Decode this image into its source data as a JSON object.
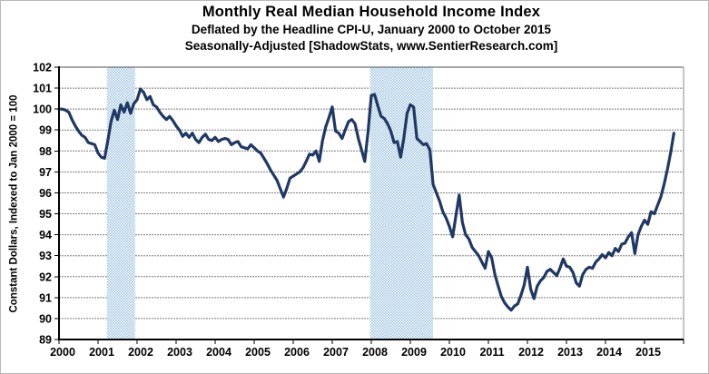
{
  "chart_data": {
    "type": "line",
    "title": "Monthly Real Median Household Income Index",
    "subtitle1": "Deflated by the Headline CPI-U, January 2000 to October 2015",
    "subtitle2": "Seasonally-Adjusted [ShadowStats, www.SentierResearch.com]",
    "ylabel": "Constant Dollars, Indexed to Jan 2000 = 100",
    "ylim": [
      89,
      102
    ],
    "yticks": [
      89,
      90,
      91,
      92,
      93,
      94,
      95,
      96,
      97,
      98,
      99,
      100,
      101,
      102
    ],
    "x_domain_years": [
      2000,
      2016
    ],
    "xticks": [
      2000,
      2001,
      2002,
      2003,
      2004,
      2005,
      2006,
      2007,
      2008,
      2009,
      2010,
      2011,
      2012,
      2013,
      2014,
      2015
    ],
    "grid": true,
    "legend": "none",
    "colors": {
      "line": "#1f3864",
      "band_dot": "#a3c7e4",
      "band_base": "#ffffff",
      "grid": "#7f7f7f",
      "axis": "#000000",
      "top_border": "#4d4d4d",
      "right_border": "#8c8c8c"
    },
    "recession_bands": [
      {
        "start_year": 2001.23,
        "end_year": 2001.95
      },
      {
        "start_year": 2007.97,
        "end_year": 2009.58
      }
    ],
    "series": [
      {
        "name": "Real Median Household Income Index",
        "start_month": "2000-01",
        "end_month": "2015-10",
        "monthly_values": [
          100.0,
          100.0,
          99.95,
          99.85,
          99.5,
          99.2,
          98.95,
          98.75,
          98.65,
          98.4,
          98.35,
          98.3,
          97.9,
          97.7,
          97.65,
          98.5,
          99.4,
          99.95,
          99.5,
          100.2,
          99.85,
          100.3,
          99.8,
          100.25,
          100.45,
          100.95,
          100.8,
          100.45,
          100.6,
          100.2,
          100.1,
          99.85,
          99.65,
          99.5,
          99.65,
          99.45,
          99.2,
          99.0,
          98.7,
          98.85,
          98.65,
          98.85,
          98.55,
          98.4,
          98.65,
          98.8,
          98.55,
          98.5,
          98.65,
          98.45,
          98.55,
          98.6,
          98.55,
          98.3,
          98.4,
          98.45,
          98.2,
          98.15,
          98.1,
          98.3,
          98.15,
          98.0,
          97.9,
          97.65,
          97.4,
          97.1,
          96.85,
          96.6,
          96.2,
          95.8,
          96.2,
          96.7,
          96.8,
          96.9,
          97.0,
          97.2,
          97.5,
          97.85,
          97.8,
          98.0,
          97.5,
          98.5,
          99.15,
          99.6,
          100.1,
          98.95,
          98.85,
          98.6,
          99.0,
          99.4,
          99.5,
          99.3,
          98.6,
          98.05,
          97.5,
          98.9,
          100.65,
          100.7,
          100.15,
          99.65,
          99.55,
          99.3,
          98.95,
          98.4,
          98.45,
          97.7,
          98.6,
          99.8,
          100.2,
          100.1,
          98.6,
          98.45,
          98.3,
          98.35,
          98.05,
          96.4,
          96.0,
          95.6,
          95.1,
          94.8,
          94.4,
          93.9,
          94.9,
          95.9,
          94.6,
          94.0,
          93.8,
          93.4,
          93.2,
          93.0,
          92.7,
          92.4,
          93.2,
          92.9,
          92.1,
          91.55,
          91.05,
          90.75,
          90.55,
          90.4,
          90.6,
          90.7,
          91.1,
          91.6,
          92.45,
          91.4,
          90.95,
          91.55,
          91.8,
          91.95,
          92.25,
          92.35,
          92.2,
          92.05,
          92.4,
          92.85,
          92.5,
          92.45,
          92.2,
          91.7,
          91.55,
          92.1,
          92.35,
          92.45,
          92.4,
          92.7,
          92.85,
          93.05,
          92.9,
          93.15,
          93.0,
          93.35,
          93.2,
          93.55,
          93.6,
          93.9,
          94.1,
          93.1,
          94.0,
          94.4,
          94.7,
          94.5,
          95.1,
          95.0,
          95.4,
          95.8,
          96.4,
          97.1,
          97.9,
          98.85
        ]
      }
    ]
  }
}
